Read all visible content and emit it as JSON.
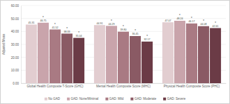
{
  "chart_data": {
    "type": "bar",
    "y_label": "Adjusted Mean",
    "categories": [
      "Global Health Composite T-Score (GHC)",
      "Mental Health Composite Score (MHC)",
      "Physical Health Composite Score (PHC)"
    ],
    "series": [
      {
        "name": "No GAD",
        "color": "#e2cdd0",
        "values": [
          45.31,
          44.91,
          47.07
        ],
        "value_labels": [
          "45.31",
          "44.91",
          "47.07"
        ]
      },
      {
        "name": "GAD: None/Minimal",
        "color": "#c9a4ab",
        "values": [
          46.75,
          44.29,
          48.24
        ],
        "value_labels": [
          "46.75",
          "44.29",
          "48.24"
        ]
      },
      {
        "name": "GAD: Mild",
        "color": "#a97a83",
        "values": [
          41.52,
          39.8,
          46.17
        ],
        "value_labels": [
          "41.52",
          "39.80",
          "46.17"
        ]
      },
      {
        "name": "GAD: Moderate",
        "color": "#8a5a64",
        "values": [
          38.33,
          36.45,
          44.08
        ],
        "value_labels": [
          "38.33",
          "36.45",
          "44.08"
        ]
      },
      {
        "name": "GAD: Severe",
        "color": "#6b3b46",
        "values": [
          35.04,
          32.17,
          42.61
        ],
        "value_labels": [
          "35.04",
          "32.17",
          "42.61"
        ]
      }
    ],
    "annotations": [
      {
        "text": "*",
        "category": 0,
        "series": 1
      },
      {
        "text": "*",
        "category": 0,
        "series": 2
      },
      {
        "text": "*",
        "category": 0,
        "series": 3
      },
      {
        "text": "*",
        "category": 0,
        "series": 4
      },
      {
        "text": "*",
        "category": 1,
        "series": 1
      },
      {
        "text": "*",
        "category": 1,
        "series": 2
      },
      {
        "text": "*",
        "category": 1,
        "series": 3
      },
      {
        "text": "*",
        "category": 1,
        "series": 4
      },
      {
        "text": "*",
        "category": 2,
        "series": 1
      },
      {
        "text": "*",
        "category": 2,
        "series": 2
      },
      {
        "text": "*",
        "category": 2,
        "series": 3
      },
      {
        "text": "*",
        "category": 2,
        "series": 4
      }
    ],
    "ylim": [
      0,
      60
    ],
    "yticks": [
      {
        "value": 0,
        "label": "0.00"
      },
      {
        "value": 10,
        "label": "10.00"
      },
      {
        "value": 20,
        "label": "20.00"
      },
      {
        "value": 30,
        "label": "30.00"
      },
      {
        "value": 40,
        "label": "40.00"
      },
      {
        "value": 50,
        "label": "50.00"
      },
      {
        "value": 60,
        "label": "60.00"
      }
    ],
    "grid": true,
    "data_labels": true,
    "legend": "bottom"
  }
}
